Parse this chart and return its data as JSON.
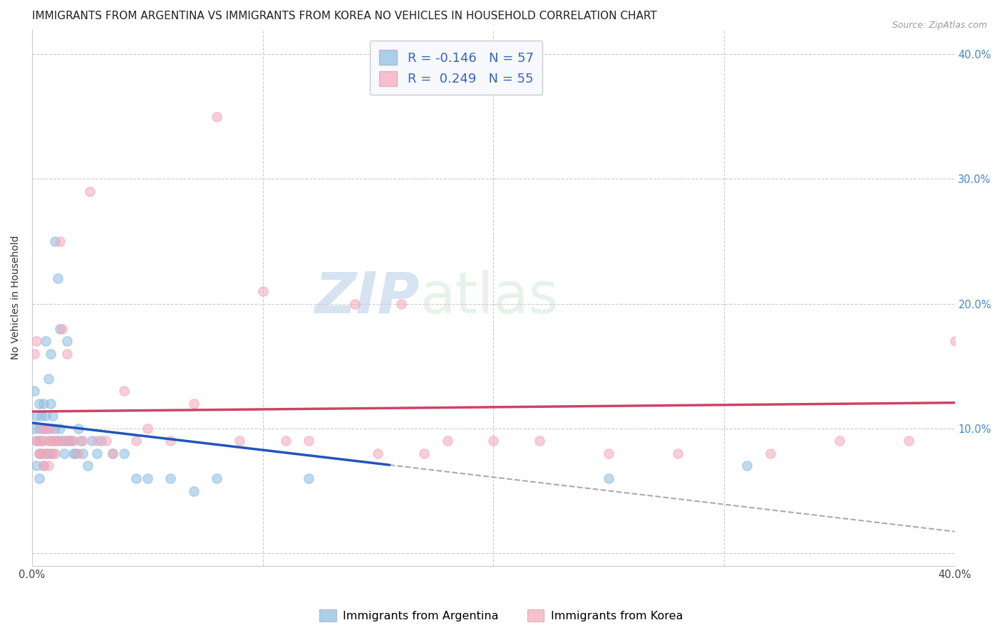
{
  "title": "IMMIGRANTS FROM ARGENTINA VS IMMIGRANTS FROM KOREA NO VEHICLES IN HOUSEHOLD CORRELATION CHART",
  "source": "Source: ZipAtlas.com",
  "ylabel": "No Vehicles in Household",
  "xlim": [
    0.0,
    0.4
  ],
  "ylim": [
    -0.01,
    0.42
  ],
  "yticks": [
    0.0,
    0.1,
    0.2,
    0.3,
    0.4
  ],
  "xticks": [
    0.0,
    0.1,
    0.2,
    0.3,
    0.4
  ],
  "ytick_labels_right": [
    "",
    "10.0%",
    "20.0%",
    "30.0%",
    "40.0%"
  ],
  "xtick_labels": [
    "0.0%",
    "",
    "",
    "",
    "40.0%"
  ],
  "argentina_color": "#8bbde0",
  "korea_color": "#f4a8b8",
  "argentina_line_color": "#2255bb",
  "korea_line_color": "#cc4466",
  "argentina_R": -0.146,
  "argentina_N": 57,
  "korea_R": 0.249,
  "korea_N": 55,
  "background_color": "#ffffff",
  "grid_color": "#cccccc",
  "watermark_zip": "ZIP",
  "watermark_atlas": "atlas",
  "marker_size": 90,
  "title_fontsize": 11,
  "label_fontsize": 10,
  "tick_fontsize": 10.5,
  "right_ytick_color": "#4488cc",
  "argentina_x": [
    0.001,
    0.001,
    0.002,
    0.002,
    0.002,
    0.003,
    0.003,
    0.003,
    0.003,
    0.004,
    0.004,
    0.004,
    0.005,
    0.005,
    0.005,
    0.006,
    0.006,
    0.006,
    0.007,
    0.007,
    0.007,
    0.008,
    0.008,
    0.008,
    0.009,
    0.009,
    0.01,
    0.01,
    0.011,
    0.011,
    0.012,
    0.012,
    0.013,
    0.014,
    0.015,
    0.015,
    0.016,
    0.017,
    0.018,
    0.019,
    0.02,
    0.021,
    0.022,
    0.024,
    0.026,
    0.028,
    0.03,
    0.035,
    0.04,
    0.045,
    0.05,
    0.06,
    0.07,
    0.08,
    0.12,
    0.25,
    0.31
  ],
  "argentina_y": [
    0.13,
    0.1,
    0.11,
    0.09,
    0.07,
    0.12,
    0.1,
    0.08,
    0.06,
    0.11,
    0.09,
    0.08,
    0.12,
    0.1,
    0.07,
    0.17,
    0.11,
    0.08,
    0.14,
    0.1,
    0.08,
    0.16,
    0.12,
    0.09,
    0.11,
    0.08,
    0.25,
    0.1,
    0.22,
    0.09,
    0.18,
    0.1,
    0.09,
    0.08,
    0.17,
    0.09,
    0.09,
    0.09,
    0.08,
    0.08,
    0.1,
    0.09,
    0.08,
    0.07,
    0.09,
    0.08,
    0.09,
    0.08,
    0.08,
    0.06,
    0.06,
    0.06,
    0.05,
    0.06,
    0.06,
    0.06,
    0.07
  ],
  "korea_x": [
    0.001,
    0.002,
    0.002,
    0.003,
    0.003,
    0.004,
    0.004,
    0.005,
    0.005,
    0.006,
    0.006,
    0.007,
    0.007,
    0.008,
    0.008,
    0.009,
    0.01,
    0.01,
    0.011,
    0.012,
    0.013,
    0.014,
    0.015,
    0.016,
    0.018,
    0.02,
    0.022,
    0.025,
    0.028,
    0.032,
    0.035,
    0.04,
    0.045,
    0.05,
    0.06,
    0.07,
    0.08,
    0.09,
    0.1,
    0.11,
    0.12,
    0.14,
    0.15,
    0.16,
    0.17,
    0.18,
    0.2,
    0.22,
    0.25,
    0.28,
    0.32,
    0.35,
    0.38,
    0.4,
    0.41
  ],
  "korea_y": [
    0.16,
    0.17,
    0.09,
    0.09,
    0.08,
    0.1,
    0.08,
    0.09,
    0.07,
    0.1,
    0.08,
    0.09,
    0.07,
    0.1,
    0.08,
    0.09,
    0.09,
    0.08,
    0.09,
    0.25,
    0.18,
    0.09,
    0.16,
    0.09,
    0.09,
    0.08,
    0.09,
    0.29,
    0.09,
    0.09,
    0.08,
    0.13,
    0.09,
    0.1,
    0.09,
    0.12,
    0.35,
    0.09,
    0.21,
    0.09,
    0.09,
    0.2,
    0.08,
    0.2,
    0.08,
    0.09,
    0.09,
    0.09,
    0.08,
    0.08,
    0.08,
    0.09,
    0.09,
    0.17,
    0.17
  ],
  "dashed_line_color": "#aaaaaa",
  "dashed_line_x": [
    0.155,
    0.4
  ],
  "argentina_line_x_end": 0.155
}
